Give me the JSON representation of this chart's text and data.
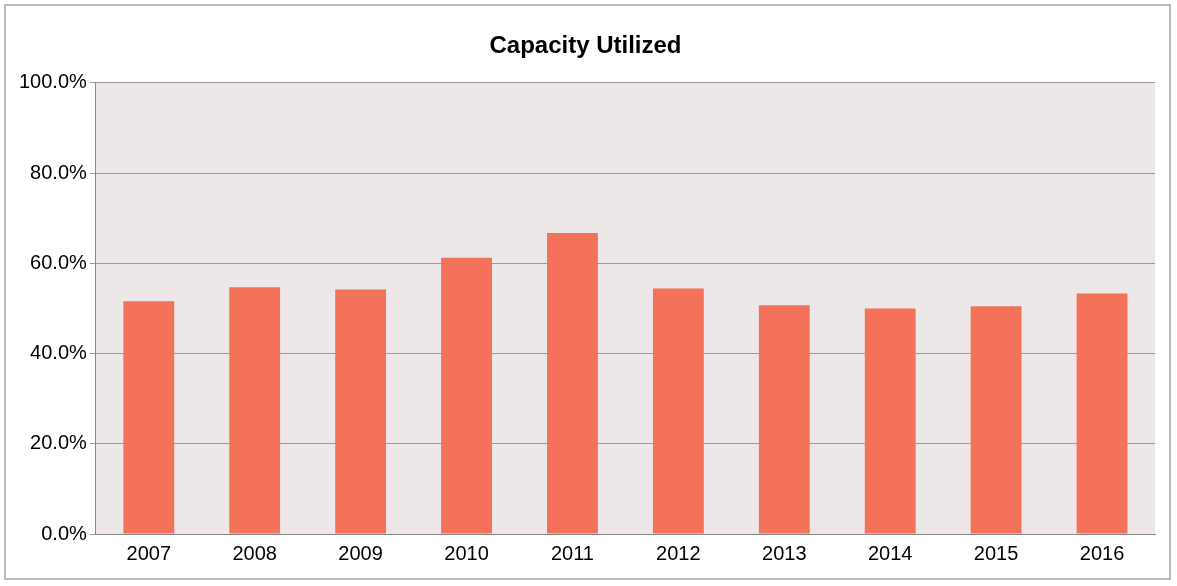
{
  "chart_data": {
    "type": "bar",
    "title": "Capacity Utilized",
    "categories": [
      "2007",
      "2008",
      "2009",
      "2010",
      "2011",
      "2012",
      "2013",
      "2014",
      "2015",
      "2016"
    ],
    "values": [
      51.6,
      54.7,
      54.2,
      61.2,
      66.7,
      54.4,
      50.7,
      50.0,
      50.5,
      53.3
    ],
    "color": "#f4715a",
    "ylim": [
      0,
      100
    ],
    "yticks": [
      {
        "value": 0,
        "label": "0.0%"
      },
      {
        "value": 20,
        "label": "20.0%"
      },
      {
        "value": 40,
        "label": "40.0%"
      },
      {
        "value": 60,
        "label": "60.0%"
      },
      {
        "value": 80,
        "label": "80.0%"
      },
      {
        "value": 100,
        "label": "100.0%"
      }
    ],
    "grid": "y",
    "legend": false
  }
}
